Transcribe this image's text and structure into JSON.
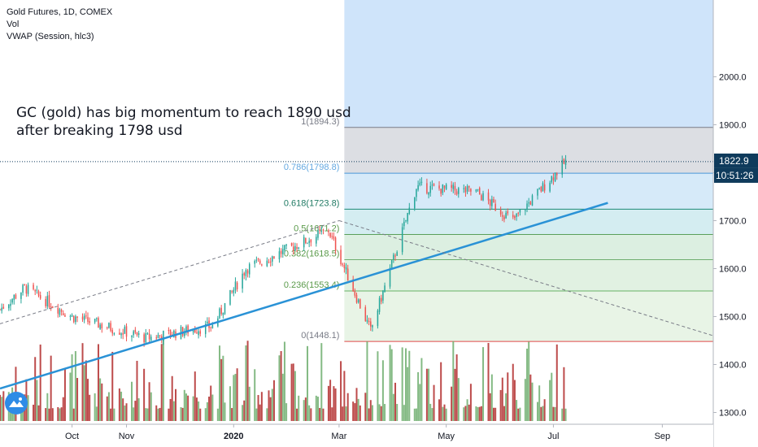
{
  "header": {
    "symbol_line": "Gold Futures, 1D, COMEX",
    "indicator_vol": "Vol",
    "indicator_vwap": "VWAP (Session, hlc3)"
  },
  "annotation": {
    "line1": "GC (gold) has big momentum to reach 1890 usd",
    "line2": "after breaking 1798 usd"
  },
  "badges": {
    "last_price": "1822.9",
    "countdown": "10:51:26"
  },
  "colors": {
    "up": "#26a69a",
    "down": "#ef5350",
    "trendline": "#2a92d6",
    "price_badge": "#0f3b5c"
  },
  "chart_data": {
    "type": "candlestick",
    "symbol": "Gold Futures",
    "interval": "1D",
    "exchange": "COMEX",
    "y_axis": {
      "ticks": [
        1300,
        1400,
        1500,
        1600,
        1700,
        1800,
        1900,
        2000
      ],
      "tick_labels": [
        "1300.0",
        "1400.0",
        "1500.0",
        "1600.0",
        "1700.0",
        "1800.0",
        "1900.0",
        "2000.0"
      ],
      "range": [
        1228,
        2160
      ]
    },
    "x_axis": {
      "tick_labels": [
        "Oct",
        "Nov",
        "2020",
        "Mar",
        "May",
        "Jul",
        "Sep"
      ],
      "range": [
        "2019-08-21",
        "2020-09-30"
      ]
    },
    "fib_levels": [
      {
        "label": "1(1894.3)",
        "value": 1894.3
      },
      {
        "label": "0.786(1798.8)",
        "value": 1798.8
      },
      {
        "label": "0.618(1723.8)",
        "value": 1723.8
      },
      {
        "label": "0.5(1671.2)",
        "value": 1671.2
      },
      {
        "label": "0.382(1618.5)",
        "value": 1618.5
      },
      {
        "label": "0.236(1553.4)",
        "value": 1553.4
      },
      {
        "label": "0(1448.1)",
        "value": 1448.1
      }
    ],
    "key_points": [
      {
        "date": "2019-08-21",
        "close": 1515
      },
      {
        "date": "2019-09-04",
        "close": 1560
      },
      {
        "date": "2019-10-01",
        "close": 1500
      },
      {
        "date": "2019-11-12",
        "close": 1455
      },
      {
        "date": "2019-12-20",
        "close": 1480
      },
      {
        "date": "2020-01-08",
        "close": 1600
      },
      {
        "date": "2020-02-24",
        "close": 1680
      },
      {
        "date": "2020-03-19",
        "close": 1470
      },
      {
        "date": "2020-04-14",
        "close": 1770
      },
      {
        "date": "2020-05-18",
        "close": 1760
      },
      {
        "date": "2020-06-08",
        "close": 1700
      },
      {
        "date": "2020-07-08",
        "close": 1822.9
      }
    ],
    "trendlines": [
      {
        "style": "solid",
        "from": {
          "date": "2019-08-21",
          "value": 1350
        },
        "to": {
          "date": "2020-08-01",
          "value": 1737
        }
      },
      {
        "style": "dashed",
        "from": {
          "date": "2019-08-21",
          "value": 1485
        },
        "to": {
          "date": "2020-03-01",
          "value": 1700
        }
      },
      {
        "style": "dashed",
        "from": {
          "date": "2020-03-01",
          "value": 1700
        },
        "to": {
          "date": "2020-09-30",
          "value": 1460
        }
      }
    ],
    "last_price": 1822.9
  }
}
